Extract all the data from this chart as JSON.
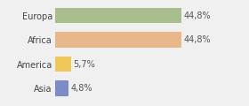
{
  "categories": [
    "Europa",
    "Africa",
    "America",
    "Asia"
  ],
  "values": [
    44.8,
    44.8,
    5.7,
    4.8
  ],
  "labels": [
    "44,8%",
    "44,8%",
    "5,7%",
    "4,8%"
  ],
  "bar_colors": [
    "#a8be8c",
    "#e8b88a",
    "#f0c85a",
    "#7b8cc8"
  ],
  "background_color": "#f0f0f0",
  "xlim": [
    0,
    58
  ],
  "bar_height": 0.65,
  "label_fontsize": 7,
  "category_fontsize": 7
}
